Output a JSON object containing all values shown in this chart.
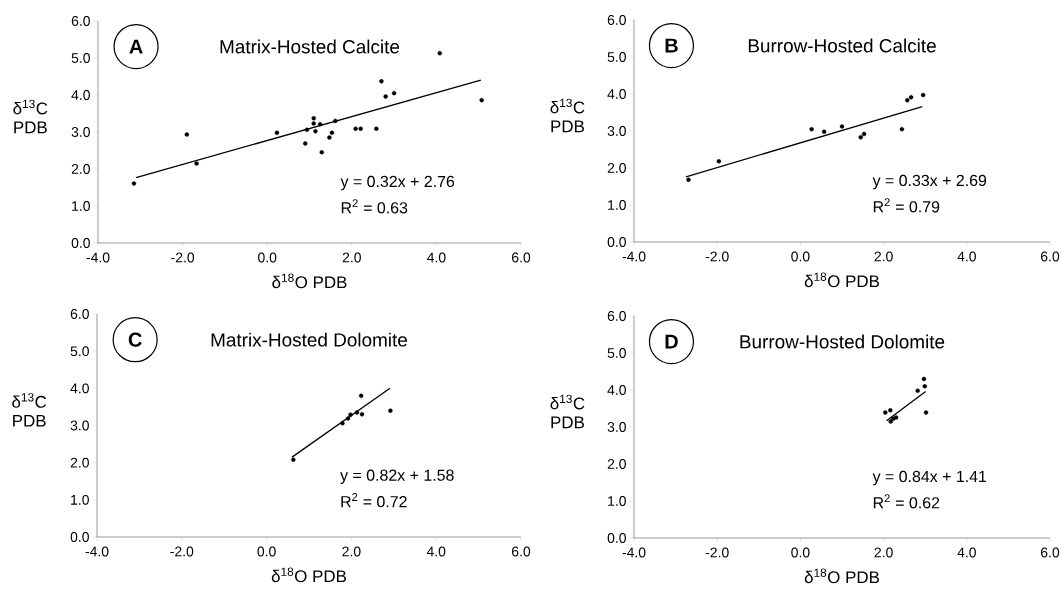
{
  "chart_data": [
    {
      "type": "scatter",
      "title": "Matrix-Hosted Calcite",
      "xlabel": "δ$^{18}$O PDB",
      "ylabel": "δ$^{13}$C PDB",
      "annotations": [
        "A",
        "y = 0.32x + 2.76",
        "R$^{2}$ = 0.63"
      ],
      "xlim": [
        -4,
        6
      ],
      "ylim": [
        0,
        6
      ],
      "xticks": [
        {
          "value": -4,
          "label": "-4.0"
        },
        {
          "value": -2,
          "label": "-2.0"
        },
        {
          "value": 0,
          "label": "0.0"
        },
        {
          "value": 2,
          "label": "2.0"
        },
        {
          "value": 4,
          "label": "4.0"
        },
        {
          "value": 6,
          "label": "6.0"
        }
      ],
      "yticks": [
        {
          "value": 0,
          "label": "0.0"
        },
        {
          "value": 1,
          "label": "1.0"
        },
        {
          "value": 2,
          "label": "2.0"
        },
        {
          "value": 3,
          "label": "3.0"
        },
        {
          "value": 4,
          "label": "4.0"
        },
        {
          "value": 5,
          "label": "5.0"
        },
        {
          "value": 6,
          "label": "6.0"
        }
      ],
      "grid": false,
      "series": [
        {
          "type": "scatter",
          "color": "#000000",
          "marker": "circle",
          "x": [
            -3.15,
            -1.9,
            -1.67,
            0.23,
            0.9,
            0.94,
            1.1,
            1.1,
            1.14,
            1.25,
            1.29,
            1.47,
            1.53,
            1.61,
            2.09,
            2.21,
            2.58,
            2.7,
            2.8,
            3.0,
            4.08,
            5.07
          ],
          "values": [
            1.61,
            2.93,
            2.15,
            2.98,
            2.69,
            3.06,
            3.37,
            3.23,
            3.02,
            3.21,
            2.45,
            2.85,
            2.98,
            3.3,
            3.09,
            3.09,
            3.09,
            4.37,
            3.96,
            4.05,
            5.13,
            3.86
          ]
        },
        {
          "type": "line",
          "color": "#000000",
          "x": [
            -3.1,
            5.05
          ],
          "values": [
            1.77,
            4.4
          ]
        }
      ]
    },
    {
      "type": "scatter",
      "title": "Burrow-Hosted Calcite",
      "xlabel": "δ$^{18}$O PDB",
      "ylabel": "δ$^{13}$C PDB",
      "annotations": [
        "B",
        "y = 0.33x + 2.69",
        "R$^{2}$ = 0.79"
      ],
      "xlim": [
        -4,
        6
      ],
      "ylim": [
        0,
        6
      ],
      "xticks": [
        {
          "value": -4,
          "label": "-4.0"
        },
        {
          "value": -2,
          "label": "-2.0"
        },
        {
          "value": 0,
          "label": "0.0"
        },
        {
          "value": 2,
          "label": "2.0"
        },
        {
          "value": 4,
          "label": "4.0"
        },
        {
          "value": 6,
          "label": "6.0"
        }
      ],
      "yticks": [
        {
          "value": 0,
          "label": "0.0"
        },
        {
          "value": 1,
          "label": "1.0"
        },
        {
          "value": 2,
          "label": "2.0"
        },
        {
          "value": 3,
          "label": "3.0"
        },
        {
          "value": 4,
          "label": "4.0"
        },
        {
          "value": 5,
          "label": "5.0"
        },
        {
          "value": 6,
          "label": "6.0"
        }
      ],
      "grid": false,
      "series": [
        {
          "type": "scatter",
          "color": "#000000",
          "marker": "circle",
          "x": [
            -2.69,
            -1.96,
            0.27,
            0.57,
            1.0,
            1.45,
            1.53,
            2.44,
            2.57,
            2.66,
            2.95
          ],
          "values": [
            1.68,
            2.18,
            3.05,
            2.98,
            3.12,
            2.83,
            2.92,
            3.05,
            3.83,
            3.91,
            3.97
          ]
        },
        {
          "type": "line",
          "color": "#000000",
          "x": [
            -2.75,
            2.93
          ],
          "values": [
            1.76,
            3.66
          ]
        }
      ]
    },
    {
      "type": "scatter",
      "title": "Matrix-Hosted Dolomite",
      "xlabel": "δ$^{18}$O PDB",
      "ylabel": "δ$^{13}$C PDB",
      "annotations": [
        "C",
        "y = 0.82x + 1.58",
        "R$^{2}$ = 0.72"
      ],
      "xlim": [
        -4,
        6
      ],
      "ylim": [
        0,
        6
      ],
      "xticks": [
        {
          "value": -4,
          "label": "-4.0"
        },
        {
          "value": -2,
          "label": "-2.0"
        },
        {
          "value": 0,
          "label": "0.0"
        },
        {
          "value": 2,
          "label": "2.0"
        },
        {
          "value": 4,
          "label": "4.0"
        },
        {
          "value": 6,
          "label": "6.0"
        }
      ],
      "yticks": [
        {
          "value": 0,
          "label": "0.0"
        },
        {
          "value": 1,
          "label": "1.0"
        },
        {
          "value": 2,
          "label": "2.0"
        },
        {
          "value": 3,
          "label": "3.0"
        },
        {
          "value": 4,
          "label": "4.0"
        },
        {
          "value": 5,
          "label": "5.0"
        },
        {
          "value": 6,
          "label": "6.0"
        }
      ],
      "grid": false,
      "series": [
        {
          "type": "scatter",
          "color": "#000000",
          "marker": "circle",
          "x": [
            0.63,
            1.79,
            1.92,
            1.98,
            2.13,
            2.23,
            2.25,
            2.92
          ],
          "values": [
            2.08,
            3.06,
            3.19,
            3.29,
            3.35,
            3.8,
            3.3,
            3.4
          ]
        },
        {
          "type": "line",
          "color": "#000000",
          "x": [
            0.6,
            2.91
          ],
          "values": [
            2.15,
            4.0
          ]
        }
      ]
    },
    {
      "type": "scatter",
      "title": "Burrow-Hosted Dolomite",
      "xlabel": "δ$^{18}$O PDB",
      "ylabel": "δ$^{13}$C PDB",
      "annotations": [
        "D",
        "y = 0.84x + 1.41",
        "R$^{2}$ = 0.62"
      ],
      "xlim": [
        -4,
        6
      ],
      "ylim": [
        0,
        6
      ],
      "xticks": [
        {
          "value": -4,
          "label": "-4.0"
        },
        {
          "value": -2,
          "label": "-2.0"
        },
        {
          "value": 0,
          "label": "0.0"
        },
        {
          "value": 2,
          "label": "2.0"
        },
        {
          "value": 4,
          "label": "4.0"
        },
        {
          "value": 6,
          "label": "6.0"
        }
      ],
      "yticks": [
        {
          "value": 0,
          "label": "0.0"
        },
        {
          "value": 1,
          "label": "1.0"
        },
        {
          "value": 2,
          "label": "2.0"
        },
        {
          "value": 3,
          "label": "3.0"
        },
        {
          "value": 4,
          "label": "4.0"
        },
        {
          "value": 5,
          "label": "5.0"
        },
        {
          "value": 6,
          "label": "6.0"
        }
      ],
      "grid": false,
      "series": [
        {
          "type": "scatter",
          "color": "#000000",
          "marker": "circle",
          "x": [
            2.04,
            2.16,
            2.17,
            2.23,
            2.3,
            2.82,
            2.97,
            2.99,
            3.02
          ],
          "values": [
            3.39,
            3.45,
            3.15,
            3.22,
            3.26,
            3.98,
            4.3,
            4.1,
            3.39
          ]
        },
        {
          "type": "line",
          "color": "#000000",
          "x": [
            2.07,
            3.01
          ],
          "values": [
            3.17,
            3.96
          ]
        }
      ]
    }
  ]
}
